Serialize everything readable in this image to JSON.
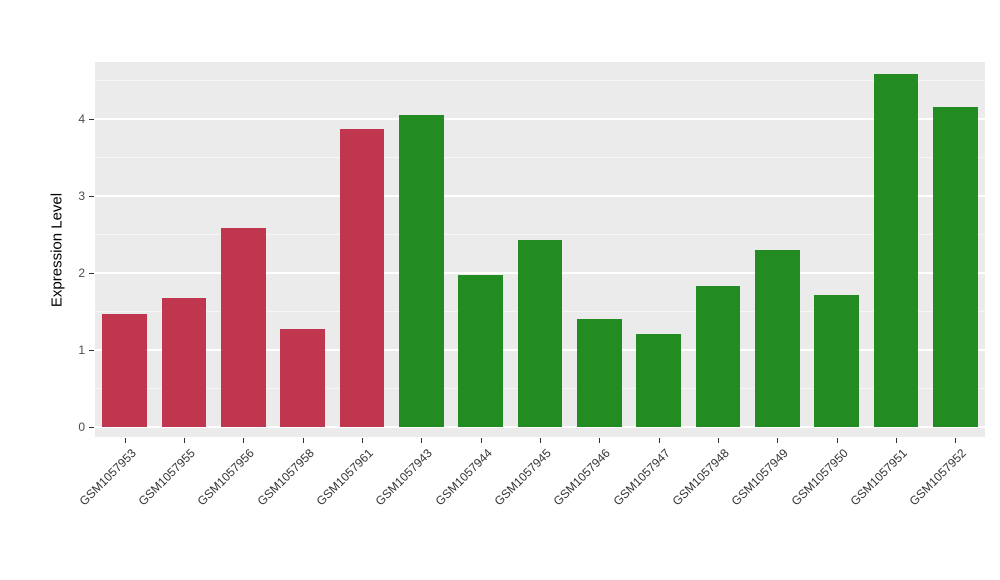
{
  "chart_data": {
    "type": "bar",
    "title": "",
    "xlabel": "",
    "ylabel": "Expression Level",
    "categories": [
      "GSM1057953",
      "GSM1057955",
      "GSM1057956",
      "GSM1057958",
      "GSM1057961",
      "GSM1057943",
      "GSM1057944",
      "GSM1057945",
      "GSM1057946",
      "GSM1057947",
      "GSM1057948",
      "GSM1057949",
      "GSM1057950",
      "GSM1057951",
      "GSM1057952"
    ],
    "values": [
      1.47,
      1.68,
      2.58,
      1.27,
      3.87,
      4.05,
      1.98,
      2.43,
      1.4,
      1.21,
      1.83,
      2.3,
      1.71,
      4.58,
      4.15
    ],
    "bar_colors": [
      "#C0364F",
      "#C0364F",
      "#C0364F",
      "#C0364F",
      "#C0364F",
      "#228B22",
      "#228B22",
      "#228B22",
      "#228B22",
      "#228B22",
      "#228B22",
      "#228B22",
      "#228B22",
      "#228B22",
      "#228B22"
    ],
    "ylim": [
      0,
      4.74
    ],
    "yticks": [
      0,
      1,
      2,
      3,
      4
    ],
    "grid": "on",
    "legend": "none",
    "plot_background": "#EBEBEB",
    "gridline_color": "#FFFFFF"
  }
}
